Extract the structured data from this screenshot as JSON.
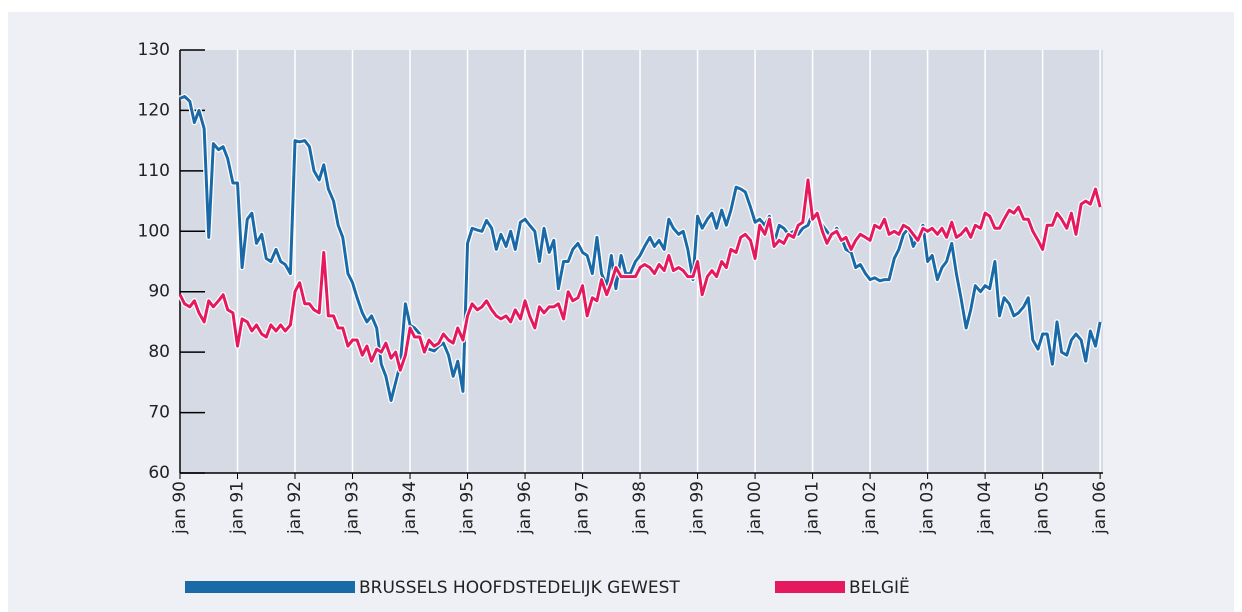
{
  "chart_data": {
    "type": "line",
    "x": [
      1990.0,
      1990.08,
      1990.17,
      1990.25,
      1990.33,
      1990.42,
      1990.5,
      1990.58,
      1990.67,
      1990.75,
      1990.83,
      1990.92,
      1991.0,
      1991.08,
      1991.17,
      1991.25,
      1991.33,
      1991.42,
      1991.5,
      1991.58,
      1991.67,
      1991.75,
      1991.83,
      1991.92,
      1992.0,
      1992.08,
      1992.17,
      1992.25,
      1992.33,
      1992.42,
      1992.5,
      1992.58,
      1992.67,
      1992.75,
      1992.83,
      1992.92,
      1993.0,
      1993.08,
      1993.17,
      1993.25,
      1993.33,
      1993.42,
      1993.5,
      1993.58,
      1993.67,
      1993.75,
      1993.83,
      1993.92,
      1994.0,
      1994.08,
      1994.17,
      1994.25,
      1994.33,
      1994.42,
      1994.5,
      1994.58,
      1994.67,
      1994.75,
      1994.83,
      1994.92,
      1995.0,
      1995.08,
      1995.17,
      1995.25,
      1995.33,
      1995.42,
      1995.5,
      1995.58,
      1995.67,
      1995.75,
      1995.83,
      1995.92,
      1996.0,
      1996.08,
      1996.17,
      1996.25,
      1996.33,
      1996.42,
      1996.5,
      1996.58,
      1996.67,
      1996.75,
      1996.83,
      1996.92,
      1997.0,
      1997.08,
      1997.17,
      1997.25,
      1997.33,
      1997.42,
      1997.5,
      1997.58,
      1997.67,
      1997.75,
      1997.83,
      1997.92,
      1998.0,
      1998.08,
      1998.17,
      1998.25,
      1998.33,
      1998.42,
      1998.5,
      1998.58,
      1998.67,
      1998.75,
      1998.83,
      1998.92,
      1999.0,
      1999.08,
      1999.17,
      1999.25,
      1999.33,
      1999.42,
      1999.5,
      1999.58,
      1999.67,
      1999.75,
      1999.83,
      1999.92,
      2000.0,
      2000.08,
      2000.17,
      2000.25,
      2000.33,
      2000.42,
      2000.5,
      2000.58,
      2000.67,
      2000.75,
      2000.83,
      2000.92,
      2001.0,
      2001.08,
      2001.17,
      2001.25,
      2001.33,
      2001.42,
      2001.5,
      2001.58,
      2001.67,
      2001.75,
      2001.83,
      2001.92,
      2002.0,
      2002.08,
      2002.17,
      2002.25,
      2002.33,
      2002.42,
      2002.5,
      2002.58,
      2002.67,
      2002.75,
      2002.83,
      2002.92,
      2003.0,
      2003.08,
      2003.17,
      2003.25,
      2003.33,
      2003.42,
      2003.5,
      2003.58,
      2003.67,
      2003.75,
      2003.83,
      2003.92,
      2004.0,
      2004.08,
      2004.17,
      2004.25,
      2004.33,
      2004.42,
      2004.5,
      2004.58,
      2004.67,
      2004.75,
      2004.83,
      2004.92,
      2005.0,
      2005.08,
      2005.17,
      2005.25,
      2005.33,
      2005.42,
      2005.5,
      2005.58,
      2005.67,
      2005.75,
      2005.83,
      2005.92,
      2006.0
    ],
    "series": [
      {
        "name": "BRUSSELS HOOFDSTEDELIJK GEWEST",
        "color": "#1b6aa8",
        "values": [
          122,
          122.3,
          121.5,
          118,
          120,
          117,
          99,
          114.5,
          113.5,
          114,
          112,
          108,
          108,
          94,
          102,
          103,
          98,
          99.5,
          95.5,
          95,
          97,
          95,
          94.5,
          93,
          115,
          114.8,
          115,
          114,
          110,
          108.5,
          111,
          107,
          105,
          101,
          99,
          93,
          91.5,
          89,
          86.5,
          85,
          86,
          84,
          78,
          76,
          72,
          75,
          78,
          88,
          84.5,
          84,
          83,
          81,
          80.5,
          80.2,
          81,
          81.5,
          79.5,
          76,
          78.5,
          73.5,
          98,
          100.5,
          100.2,
          100,
          101.8,
          100.5,
          97,
          99.5,
          97.5,
          100,
          97,
          101.5,
          102,
          101,
          100,
          95,
          100.5,
          96.5,
          98.5,
          90.5,
          95,
          95,
          97,
          98,
          96.5,
          96,
          93,
          99,
          93,
          91,
          96,
          90.5,
          96,
          93,
          93,
          95,
          96,
          97.5,
          99,
          97.5,
          98.5,
          97,
          102,
          100.5,
          99.5,
          100,
          97,
          92,
          102.5,
          100.5,
          102,
          103,
          100.5,
          103.5,
          101,
          103.5,
          107.3,
          107,
          106.5,
          104,
          101.5,
          102,
          101,
          102.5,
          98,
          101,
          100.5,
          99.5,
          100,
          99.5,
          100.5,
          101,
          103,
          102.5,
          101,
          100,
          99,
          100.5,
          99,
          97,
          96.5,
          94,
          94.5,
          93,
          92,
          92.3,
          91.8,
          92,
          92,
          95.5,
          97,
          99.5,
          100.5,
          97.5,
          99,
          101,
          95,
          96,
          92,
          94,
          95,
          98,
          93,
          89,
          84,
          87,
          91,
          90,
          91,
          90.5,
          95,
          86,
          89,
          88,
          86,
          86.5,
          87.5,
          89,
          82,
          80.5,
          83,
          83,
          78,
          85,
          80,
          79.5,
          82,
          83,
          82,
          78.5,
          83.5,
          81,
          85
        ]
      },
      {
        "name": "BELGIË",
        "color": "#e5195e",
        "values": [
          89.5,
          88,
          87.5,
          88.5,
          86.5,
          85,
          88.5,
          87.5,
          88.5,
          89.5,
          87,
          86.5,
          81,
          85.5,
          85,
          83.5,
          84.5,
          83,
          82.5,
          84.5,
          83.5,
          84.5,
          83.5,
          84.5,
          90,
          91.5,
          88,
          88,
          87,
          86.5,
          96.5,
          86,
          86,
          84,
          84,
          81,
          82,
          82,
          79.5,
          81,
          78.5,
          80.5,
          80,
          81.5,
          79,
          80,
          77,
          79.5,
          84,
          82.5,
          82.5,
          80,
          82,
          81,
          81.5,
          83,
          82,
          81.5,
          84,
          82,
          86,
          88,
          87,
          87.5,
          88.5,
          87,
          86,
          85.5,
          86,
          85,
          87,
          85.5,
          88.5,
          86,
          84,
          87.5,
          86.5,
          87.5,
          87.5,
          88,
          85.5,
          90,
          88.5,
          89,
          91,
          86,
          89,
          88.5,
          92,
          89.5,
          91.5,
          94,
          92.5,
          92.5,
          92.5,
          92.5,
          94,
          94.5,
          94,
          93,
          94.5,
          93.5,
          96,
          93.5,
          94,
          93.5,
          92.5,
          92.5,
          95,
          89.5,
          92.5,
          93.5,
          92.5,
          95,
          94,
          97,
          96.5,
          99,
          99.5,
          98.5,
          95.5,
          101,
          99.5,
          102,
          97.5,
          98.5,
          98,
          99.5,
          99,
          101,
          101.5,
          108.5,
          102,
          103,
          100,
          98,
          99.5,
          100,
          98.5,
          99,
          97,
          98.5,
          99.5,
          99,
          98.5,
          101,
          100.5,
          102,
          99.5,
          100,
          99.5,
          101,
          100.5,
          99.5,
          98.5,
          100.5,
          100,
          100.5,
          99.5,
          100.5,
          99,
          101.5,
          99,
          99.5,
          100.5,
          99,
          101,
          100.5,
          103,
          102.5,
          100.5,
          100.5,
          102,
          103.5,
          103,
          104,
          102,
          102,
          100,
          98.5,
          97,
          101,
          101,
          103,
          102,
          100.5,
          103,
          99.5,
          104.5,
          105,
          104.5,
          107,
          104
        ]
      }
    ],
    "xlim": [
      1990,
      2006.05
    ],
    "xticks": [
      {
        "value": 1990,
        "label": "jan 90"
      },
      {
        "value": 1991,
        "label": "jan 91"
      },
      {
        "value": 1992,
        "label": "jan 92"
      },
      {
        "value": 1993,
        "label": "jan 93"
      },
      {
        "value": 1994,
        "label": "jan 94"
      },
      {
        "value": 1995,
        "label": "jan 95"
      },
      {
        "value": 1996,
        "label": "jan 96"
      },
      {
        "value": 1997,
        "label": "jan 97"
      },
      {
        "value": 1998,
        "label": "jan 98"
      },
      {
        "value": 1999,
        "label": "jan 99"
      },
      {
        "value": 2000,
        "label": "jan 00"
      },
      {
        "value": 2001,
        "label": "jan 01"
      },
      {
        "value": 2002,
        "label": "jan 02"
      },
      {
        "value": 2003,
        "label": "jan 03"
      },
      {
        "value": 2004,
        "label": "jan 04"
      },
      {
        "value": 2005,
        "label": "jan 05"
      },
      {
        "value": 2006,
        "label": "jan 06"
      }
    ],
    "ylim": [
      60,
      130
    ],
    "yticks": [
      60,
      70,
      80,
      90,
      100,
      110,
      120,
      130
    ],
    "grid": true
  }
}
